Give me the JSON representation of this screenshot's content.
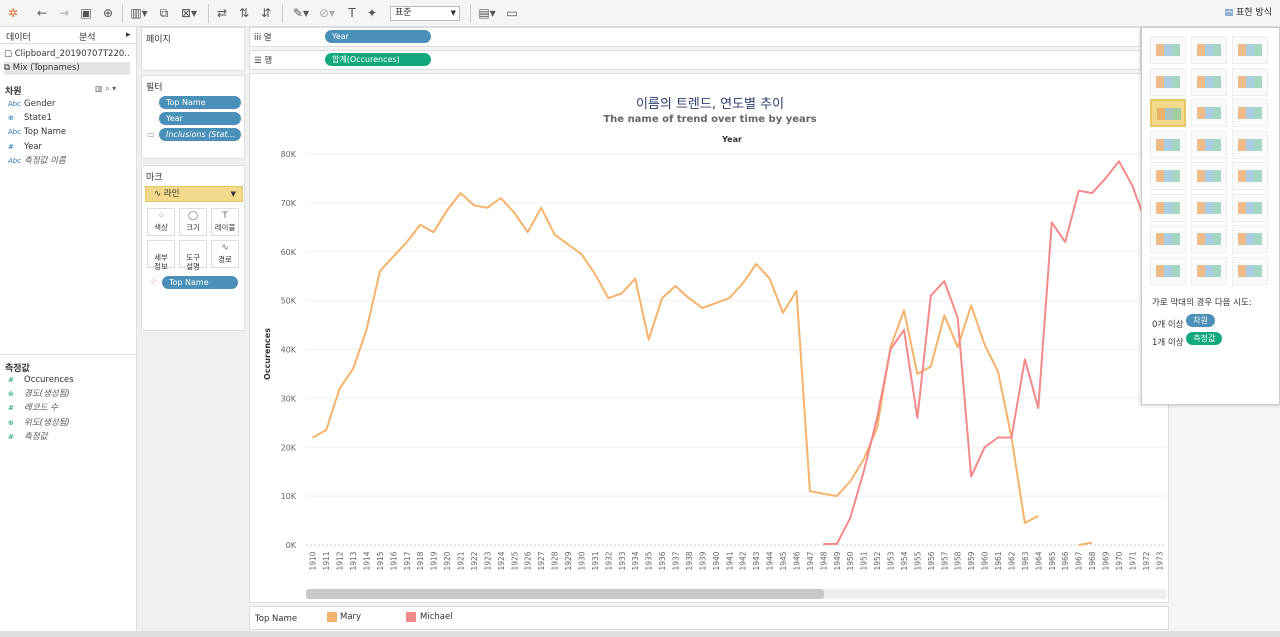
{
  "toolbar": {
    "dropdown_value": "표준",
    "show_me_label": "표현 방식"
  },
  "left_panel": {
    "tabs": [
      "데이터",
      "분석"
    ],
    "datasources": [
      "Clipboard_20190707T220...",
      "Mix (Topnames)"
    ],
    "dimensions_title": "차원",
    "dimensions": [
      {
        "type": "Abc",
        "name": "Gender",
        "italic": false
      },
      {
        "type": "⊕",
        "name": "State1",
        "italic": false
      },
      {
        "type": "Abc",
        "name": "Top Name",
        "italic": false
      },
      {
        "type": "#",
        "name": "Year",
        "italic": false
      },
      {
        "type": "Abc",
        "name": "측정값 이름",
        "italic": true
      }
    ],
    "measures_title": "측정값",
    "measures": [
      {
        "type": "#",
        "name": "Occurences",
        "italic": false
      },
      {
        "type": "⊕",
        "name": "경도(생성됨)",
        "italic": true
      },
      {
        "type": "#",
        "name": "레코드 수",
        "italic": true
      },
      {
        "type": "⊕",
        "name": "위도(생성됨)",
        "italic": true
      },
      {
        "type": "#",
        "name": "측정값",
        "italic": true
      }
    ]
  },
  "cards": {
    "pages_title": "페이지",
    "filters_title": "필터",
    "filters": [
      "Top Name",
      "Year",
      "Inclusions (Stat..."
    ],
    "marks_title": "마크",
    "mark_type": "라인",
    "mark_buttons": [
      {
        "label": "색상",
        "icon": "⁘"
      },
      {
        "label": "크기",
        "icon": "◯"
      },
      {
        "label": "레이블",
        "icon": "T"
      },
      {
        "label": "세부\n정보",
        "icon": ""
      },
      {
        "label": "도구\n설명",
        "icon": ""
      },
      {
        "label": "경로",
        "icon": "∿"
      }
    ],
    "color_pill": "Top Name"
  },
  "shelves": {
    "columns_label": "열",
    "columns_pill": "Year",
    "rows_label": "행",
    "rows_pill": "합계(Occurences)"
  },
  "chart_data": {
    "type": "line",
    "title": "이름의 트렌드, 연도별 추이",
    "subtitle": "The name of trend over time by years",
    "xlabel": "Year",
    "ylabel": "Occurences",
    "ylim": [
      0,
      80000
    ],
    "yticks": [
      "0K",
      "10K",
      "20K",
      "30K",
      "40K",
      "50K",
      "60K",
      "70K",
      "80K"
    ],
    "grid": true,
    "legend_title": "Top Name",
    "legend_placement": "bottom",
    "x": [
      1910,
      1911,
      1912,
      1913,
      1914,
      1915,
      1916,
      1917,
      1918,
      1919,
      1920,
      1921,
      1922,
      1923,
      1924,
      1925,
      1926,
      1927,
      1928,
      1929,
      1930,
      1931,
      1932,
      1933,
      1934,
      1935,
      1936,
      1937,
      1938,
      1939,
      1940,
      1941,
      1942,
      1943,
      1944,
      1945,
      1946,
      1947,
      1948,
      1949,
      1950,
      1951,
      1952,
      1953,
      1954,
      1955,
      1956,
      1957,
      1958,
      1959,
      1960,
      1961,
      1962,
      1963,
      1964,
      1965,
      1966,
      1967,
      1968,
      1969,
      1970,
      1971,
      1972,
      1973
    ],
    "series": [
      {
        "name": "Mary",
        "color": "#f5b26b",
        "values": [
          22000,
          23500,
          32000,
          36000,
          44000,
          56000,
          59000,
          62000,
          65500,
          64000,
          68500,
          72000,
          69500,
          69000,
          71000,
          68000,
          64000,
          69000,
          63500,
          61500,
          59500,
          55500,
          50500,
          51500,
          54500,
          42000,
          50500,
          53000,
          50500,
          48500,
          49500,
          50500,
          53500,
          57500,
          54500,
          47500,
          52000,
          11000,
          10500,
          10000,
          13000,
          17500,
          24000,
          40500,
          48000,
          35000,
          36500,
          47000,
          40500,
          49000,
          41000,
          35500,
          22000,
          4500,
          6000,
          null,
          null,
          0,
          500,
          null,
          null,
          null,
          null,
          null
        ]
      },
      {
        "name": "Michael",
        "color": "#f28a8a",
        "values": [
          null,
          null,
          null,
          null,
          null,
          null,
          null,
          null,
          null,
          null,
          null,
          null,
          null,
          null,
          null,
          null,
          null,
          null,
          null,
          null,
          null,
          null,
          null,
          null,
          null,
          null,
          null,
          null,
          null,
          null,
          null,
          null,
          null,
          null,
          null,
          null,
          null,
          null,
          200,
          200,
          5500,
          15000,
          26000,
          40000,
          44000,
          26000,
          51000,
          54000,
          46500,
          14000,
          20000,
          22000,
          22000,
          38000,
          28000,
          66000,
          62000,
          72500,
          72000,
          75000,
          78500,
          73500,
          66000,
          null
        ]
      }
    ]
  },
  "showme": {
    "hint": "가로 막대의 경우 다음 시도:",
    "row1_prefix": "0개 이상",
    "row1_pill": "차원",
    "row2_prefix": "1개 이상",
    "row2_pill": "측정값"
  }
}
